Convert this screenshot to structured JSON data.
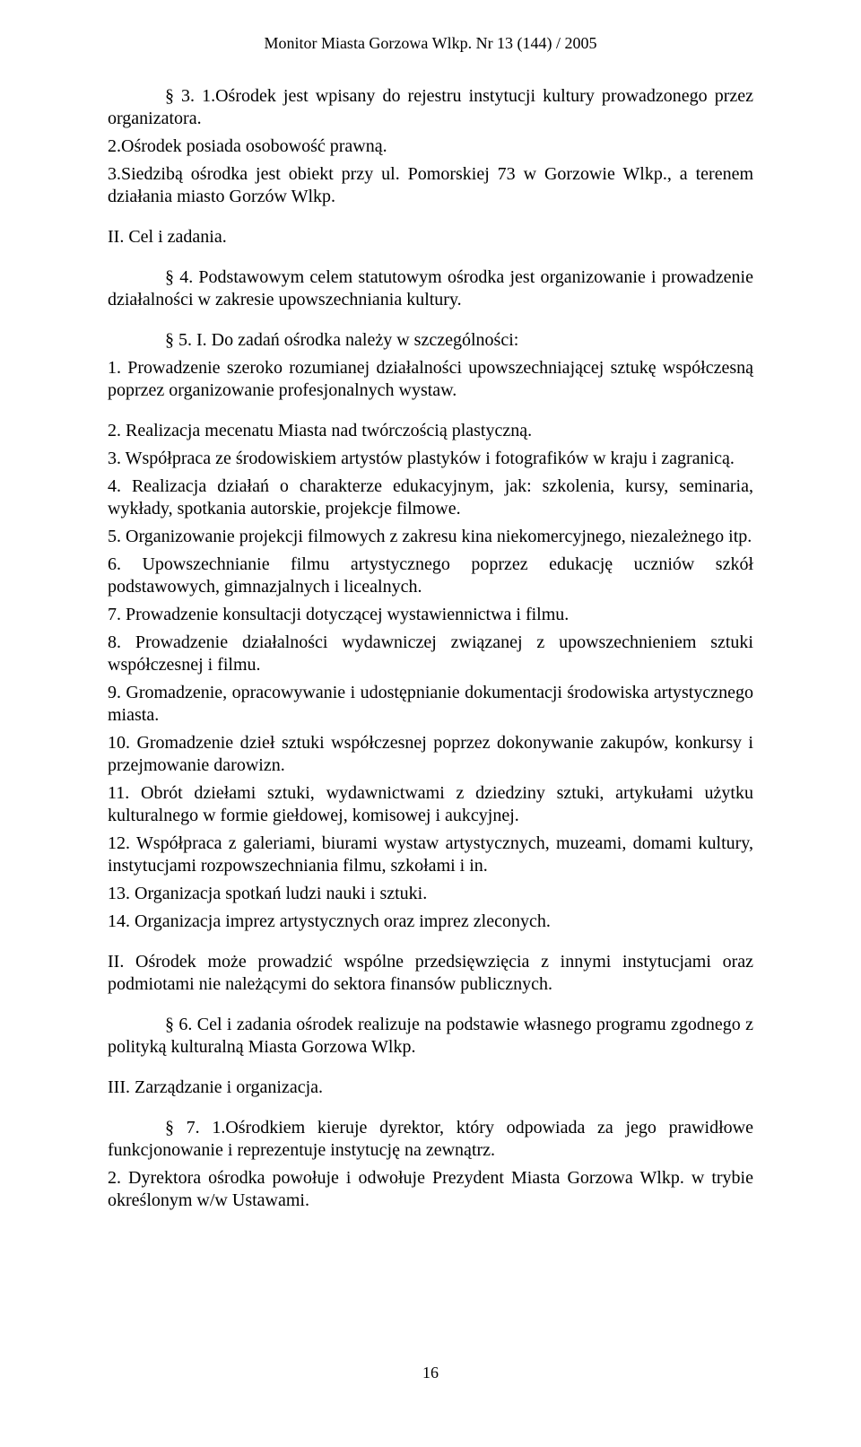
{
  "header": "Monitor Miasta Gorzowa Wlkp. Nr 13 (144) / 2005",
  "p1": "§ 3. 1.Ośrodek jest wpisany do rejestru instytucji kultury prowadzonego przez organizatora.",
  "p2": "2.Ośrodek posiada osobowość prawną.",
  "p3": "3.Siedzibą ośrodka jest obiekt przy ul. Pomorskiej 73 w Gorzowie Wlkp., a terenem działania miasto Gorzów Wlkp.",
  "s2_title": "II. Cel i zadania.",
  "p4": "§ 4. Podstawowym celem statutowym ośrodka jest organizowanie i prowadzenie działalności w zakresie upowszechniania kultury.",
  "p5": "§ 5. I. Do zadań ośrodka należy w szczególności:",
  "li1": "1. Prowadzenie szeroko rozumianej działalności upowszechniającej sztukę współczesną poprzez organizowanie profesjonalnych wystaw.",
  "li2": "2. Realizacja mecenatu Miasta nad twórczością plastyczną.",
  "li3": "3. Współpraca ze środowiskiem artystów plastyków i fotografików w kraju i zagranicą.",
  "li4": "4. Realizacja działań o charakterze edukacyjnym, jak: szkolenia, kursy, seminaria, wykłady, spotkania autorskie, projekcje filmowe.",
  "li5": "5. Organizowanie projekcji filmowych z zakresu kina niekomercyjnego, niezależnego itp.",
  "li6": "6. Upowszechnianie filmu artystycznego poprzez edukację uczniów szkół podstawowych, gimnazjalnych i licealnych.",
  "li7": "7. Prowadzenie konsultacji dotyczącej wystawiennictwa i filmu.",
  "li8": "8. Prowadzenie działalności wydawniczej związanej z upowszechnieniem sztuki współczesnej i filmu.",
  "li9": "9. Gromadzenie, opracowywanie i udostępnianie dokumentacji środowiska artystycznego miasta.",
  "li10": "10. Gromadzenie dzieł sztuki współczesnej poprzez dokonywanie zakupów, konkursy i przejmowanie darowizn.",
  "li11": "11. Obrót dziełami sztuki, wydawnictwami z dziedziny sztuki, artykułami użytku kulturalnego w formie giełdowej, komisowej i aukcyjnej.",
  "li12": "12. Współpraca z galeriami, biurami wystaw artystycznych, muzeami, domami kultury, instytucjami rozpowszechniania filmu, szkołami i in.",
  "li13": "13. Organizacja spotkań ludzi nauki i sztuki.",
  "li14": "14. Organizacja imprez artystycznych oraz imprez zleconych.",
  "pII": "II. Ośrodek może prowadzić wspólne przedsięwzięcia z innymi instytucjami oraz podmiotami nie należącymi do sektora finansów publicznych.",
  "p6": "§ 6. Cel i zadania ośrodek realizuje na podstawie własnego programu zgodnego z polityką kulturalną Miasta Gorzowa Wlkp.",
  "s3_title": "III. Zarządzanie i organizacja.",
  "p7": "§ 7. 1.Ośrodkiem kieruje dyrektor, który odpowiada za jego prawidłowe funkcjonowanie i reprezentuje instytucję na zewnątrz.",
  "p7b": "2. Dyrektora ośrodka powołuje i odwołuje Prezydent Miasta Gorzowa Wlkp. w trybie określonym w/w Ustawami.",
  "page_number": "16"
}
